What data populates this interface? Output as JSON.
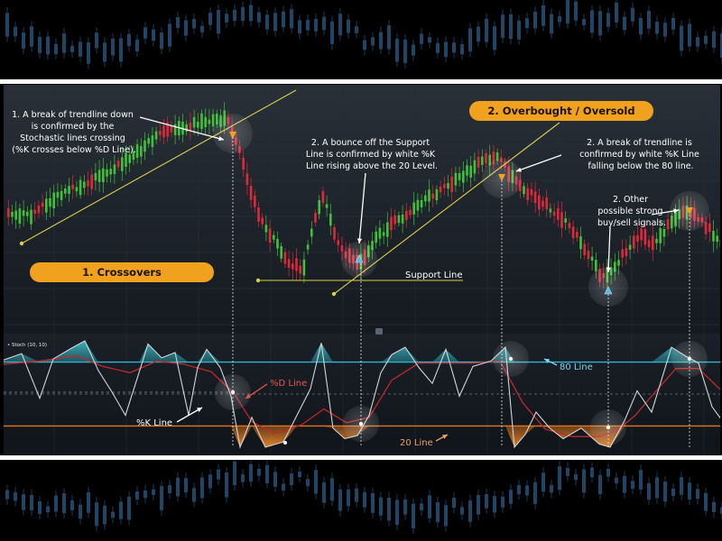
{
  "annotations": {
    "crossover": [
      "1. A break of trendline down",
      "is confirmed by the",
      "Stochastic lines crossing",
      "(%K crosses below %D Line)."
    ],
    "bounce": [
      "2. A bounce off the Support",
      "Line is confirmed by white %K",
      "Line rising above the 20 Level."
    ],
    "break80": [
      "2. A break of trendline is",
      "confirmed by white %K Line",
      "falling below the 80 line."
    ],
    "other": [
      "2. Other",
      "possible strong",
      "buy/sell signals."
    ]
  },
  "titles": {
    "crossovers": "1. Crossovers",
    "overbought": "2. Overbought / Oversold"
  },
  "labels": {
    "support_line": "Support Line",
    "d_line": "%D Line",
    "k_line": "%K Line",
    "line_80": "80 Line",
    "line_20": "20 Line",
    "stoch_tag": "• Stoch (10, 10)"
  },
  "colors": {
    "bull": "#3fc23a",
    "bear": "#e0283a",
    "trendline": "#d9cf4a",
    "line80": "#2fb6d6",
    "line20": "#e8731f",
    "pill": "#f0a21e",
    "dline": "#c0282b",
    "kline": "#d4d4d4"
  },
  "chart_data": [
    {
      "type": "candlestick",
      "title": "",
      "series": [
        {
          "name": "",
          "close_path": [
            [
              0,
              232
            ],
            [
              30,
              240
            ],
            [
              60,
              220
            ],
            [
              100,
              200
            ],
            [
              140,
              178
            ],
            [
              175,
              148
            ],
            [
              200,
              140
            ],
            [
              225,
              135
            ],
            [
              250,
              130
            ],
            [
              258,
              150
            ],
            [
              268,
              180
            ],
            [
              285,
              240
            ],
            [
              300,
              262
            ],
            [
              318,
              290
            ],
            [
              335,
              300
            ],
            [
              345,
              250
            ],
            [
              358,
              215
            ],
            [
              372,
              270
            ],
            [
              385,
              285
            ],
            [
              398,
              290
            ],
            [
              410,
              272
            ],
            [
              430,
              250
            ],
            [
              455,
              235
            ],
            [
              480,
              215
            ],
            [
              505,
              200
            ],
            [
              530,
              182
            ],
            [
              548,
              172
            ],
            [
              560,
              188
            ],
            [
              575,
              205
            ],
            [
              590,
              218
            ],
            [
              610,
              232
            ],
            [
              630,
              250
            ],
            [
              650,
              280
            ],
            [
              665,
              308
            ],
            [
              678,
              298
            ],
            [
              692,
              278
            ],
            [
              708,
              262
            ],
            [
              722,
              270
            ],
            [
              740,
              250
            ],
            [
              755,
              232
            ],
            [
              770,
              240
            ],
            [
              790,
              260
            ],
            [
              798,
              268
            ]
          ]
        }
      ]
    },
    {
      "type": "line",
      "title": "",
      "levels": [
        80,
        20
      ],
      "series": [
        {
          "name": "%K Line",
          "values": [
            [
              0,
              82
            ],
            [
              20,
              88
            ],
            [
              40,
              46
            ],
            [
              55,
              83
            ],
            [
              75,
              93
            ],
            [
              90,
              100
            ],
            [
              105,
              72
            ],
            [
              120,
              52
            ],
            [
              135,
              30
            ],
            [
              150,
              70
            ],
            [
              160,
              97
            ],
            [
              175,
              84
            ],
            [
              190,
              89
            ],
            [
              205,
              30
            ],
            [
              215,
              75
            ],
            [
              225,
              92
            ],
            [
              240,
              75
            ],
            [
              252,
              48
            ],
            [
              262,
              0
            ],
            [
              275,
              28
            ],
            [
              290,
              0
            ],
            [
              310,
              5
            ],
            [
              325,
              30
            ],
            [
              340,
              55
            ],
            [
              352,
              98
            ],
            [
              365,
              18
            ],
            [
              378,
              8
            ],
            [
              392,
              11
            ],
            [
              405,
              30
            ],
            [
              418,
              70
            ],
            [
              430,
              87
            ],
            [
              445,
              94
            ],
            [
              460,
              75
            ],
            [
              475,
              60
            ],
            [
              490,
              92
            ],
            [
              505,
              48
            ],
            [
              520,
              76
            ],
            [
              540,
              81
            ],
            [
              556,
              94
            ],
            [
              566,
              0
            ],
            [
              578,
              12
            ],
            [
              590,
              33
            ],
            [
              605,
              18
            ],
            [
              620,
              8
            ],
            [
              640,
              18
            ],
            [
              660,
              3
            ],
            [
              672,
              0
            ],
            [
              688,
              25
            ],
            [
              702,
              53
            ],
            [
              718,
              33
            ],
            [
              740,
              94
            ],
            [
              755,
              86
            ],
            [
              770,
              79
            ],
            [
              785,
              38
            ],
            [
              798,
              23
            ]
          ]
        },
        {
          "name": "%D Line",
          "values": [
            [
              0,
              78
            ],
            [
              40,
              81
            ],
            [
              80,
              86
            ],
            [
              110,
              76
            ],
            [
              140,
              70
            ],
            [
              170,
              81
            ],
            [
              200,
              78
            ],
            [
              230,
              71
            ],
            [
              255,
              51
            ],
            [
              275,
              24
            ],
            [
              300,
              13
            ],
            [
              330,
              21
            ],
            [
              355,
              36
            ],
            [
              380,
              23
            ],
            [
              405,
              28
            ],
            [
              430,
              63
            ],
            [
              460,
              79
            ],
            [
              490,
              79
            ],
            [
              520,
              79
            ],
            [
              550,
              81
            ],
            [
              575,
              42
            ],
            [
              600,
              17
            ],
            [
              630,
              10
            ],
            [
              660,
              10
            ],
            [
              680,
              16
            ],
            [
              700,
              30
            ],
            [
              720,
              50
            ],
            [
              745,
              74
            ],
            [
              770,
              74
            ],
            [
              798,
              51
            ]
          ]
        }
      ]
    }
  ]
}
